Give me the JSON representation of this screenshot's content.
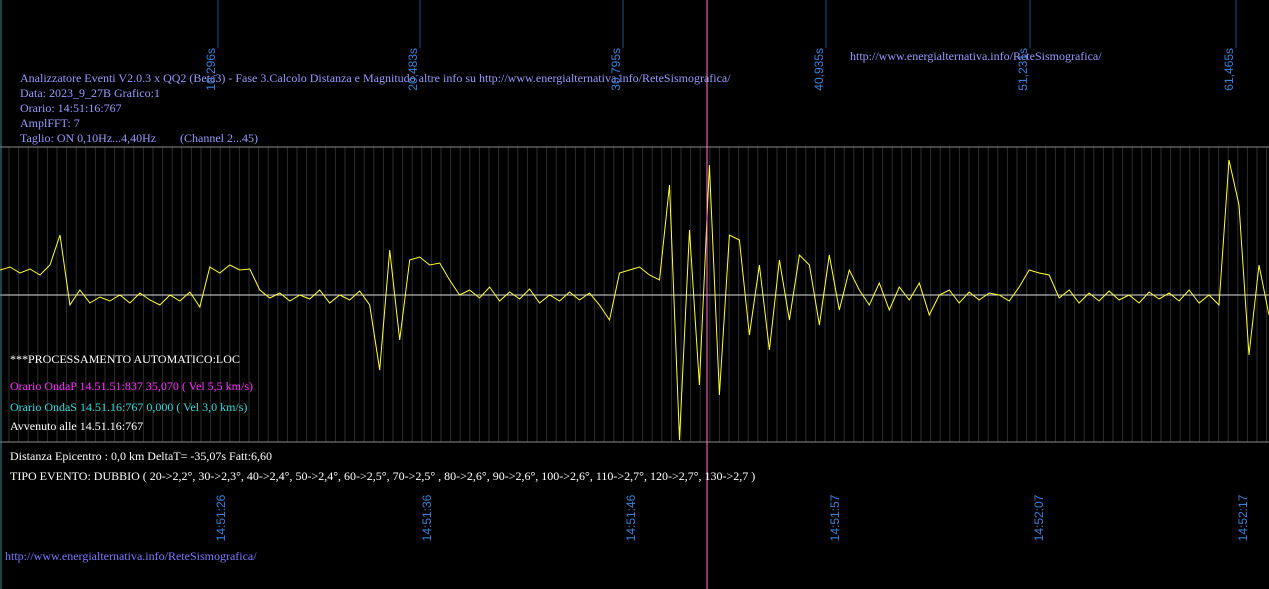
{
  "header": {
    "lines": [
      "Analizzatore Eventi V2.0.3 x QQ2 (Beta3) - Fase 3.Calcolo Distanza e Magnitudo altre info su http://www.energialternativa.info/ReteSismografica/",
      "Data: 2023_9_27B Grafico:1",
      "Orario: 14:51:16:767",
      "AmplFFT: 7",
      "Taglio: ON 0,10Hz...4,40Hz"
    ],
    "channel": "(Channel 2...45)"
  },
  "url_top": "http://www.energialternativa.info/ReteSismografica/",
  "url_bottom": "http://www.energialternativa.info/ReteSismografica/",
  "top_ticks": [
    "10,296s",
    "20,483s",
    "30,795s",
    "40,935s",
    "51,231s",
    "61,465s"
  ],
  "bottom_ticks": [
    "14:51:26",
    "14:51:36",
    "14:51:46",
    "14:51:57",
    "14:52:07",
    "14:52:17"
  ],
  "processing": {
    "title": "***PROCESSAMENTO AUTOMATICO:LOC",
    "onda_p": "Orario OndaP 14.51.51:837  35,070 ( Vel 5,5 km/s)",
    "onda_s": "Orario OndaS 14.51.16:767  0,000 ( Vel 3,0 km/s)",
    "avvenuto": "Avvenuto alle 14.51.16:767",
    "distanza": "Distanza Epicentro : 0,0 km DeltaT= -35,07s  Fatt:6,60",
    "tipo": "TIPO EVENTO: DUBBIO ( 20->2,2°, 30->2,3°, 40->2,4°, 50->2,4°, 60->2,5°, 70->2,5° , 80->2,6°, 90->2,6°, 100->2,6°, 110->2,7°, 120->2,7°, 130->2,7 )"
  },
  "waveform": {
    "color": "#ffff33",
    "values": [
      25,
      28,
      22,
      26,
      20,
      30,
      60,
      -10,
      5,
      -8,
      -2,
      -6,
      0,
      -8,
      2,
      -5,
      -10,
      0,
      -6,
      3,
      -12,
      28,
      22,
      30,
      25,
      26,
      5,
      -3,
      2,
      -6,
      0,
      -4,
      5,
      -8,
      0,
      -5,
      4,
      -10,
      -75,
      45,
      -45,
      35,
      38,
      30,
      32,
      15,
      0,
      5,
      -3,
      8,
      -6,
      3,
      -4,
      6,
      -8,
      0,
      -6,
      3,
      -5,
      2,
      -10,
      -25,
      22,
      25,
      28,
      20,
      15,
      110,
      -145,
      65,
      -90,
      130,
      -100,
      60,
      55,
      -40,
      30,
      -55,
      35,
      -25,
      40,
      30,
      -30,
      40,
      -15,
      25,
      5,
      -10,
      12,
      -15,
      8,
      -5,
      12,
      -20,
      0,
      5,
      -8,
      3,
      -5,
      2,
      0,
      -6,
      8,
      25,
      22,
      20,
      -3,
      5,
      -8,
      2,
      -6,
      4,
      -5,
      0,
      -8,
      3,
      -4,
      2,
      -6,
      5,
      -8,
      0,
      -10,
      135,
      90,
      -60,
      30,
      -20
    ]
  }
}
